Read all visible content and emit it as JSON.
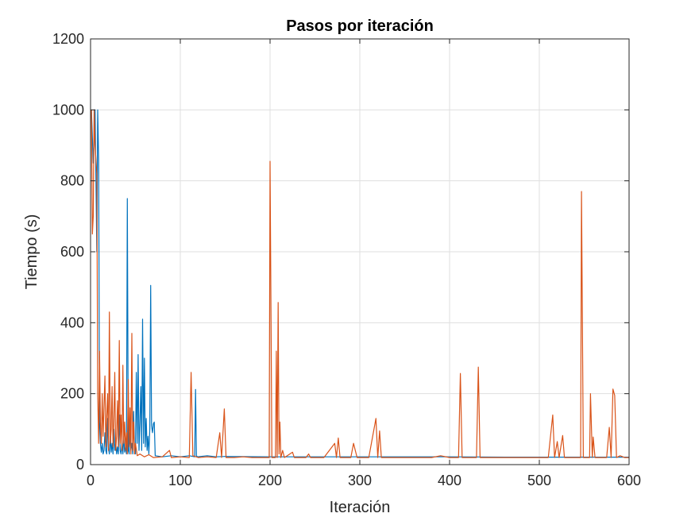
{
  "chart_data": {
    "type": "line",
    "title": "Pasos por iteración",
    "xlabel": "Iteración",
    "ylabel": "Tiempo (s)",
    "xlim": [
      0,
      600
    ],
    "ylim": [
      0,
      1200
    ],
    "xticks": [
      0,
      100,
      200,
      300,
      400,
      500,
      600
    ],
    "yticks": [
      0,
      200,
      400,
      600,
      800,
      1000,
      1200
    ],
    "grid": true,
    "series": [
      {
        "color": "#0072BD",
        "points": [
          [
            1,
            1000
          ],
          [
            3,
            850
          ],
          [
            5,
            1000
          ],
          [
            7,
            600
          ],
          [
            8,
            1000
          ],
          [
            9,
            860
          ],
          [
            10,
            120
          ],
          [
            11,
            60
          ],
          [
            12,
            35
          ],
          [
            13,
            60
          ],
          [
            14,
            30
          ],
          [
            15,
            40
          ],
          [
            16,
            90
          ],
          [
            17,
            40
          ],
          [
            18,
            30
          ],
          [
            19,
            130
          ],
          [
            20,
            45
          ],
          [
            21,
            30
          ],
          [
            22,
            80
          ],
          [
            23,
            35
          ],
          [
            24,
            60
          ],
          [
            25,
            30
          ],
          [
            26,
            100
          ],
          [
            27,
            40
          ],
          [
            28,
            60
          ],
          [
            29,
            30
          ],
          [
            30,
            50
          ],
          [
            31,
            30
          ],
          [
            32,
            140
          ],
          [
            33,
            40
          ],
          [
            34,
            30
          ],
          [
            35,
            60
          ],
          [
            36,
            30
          ],
          [
            37,
            80
          ],
          [
            38,
            35
          ],
          [
            39,
            50
          ],
          [
            40,
            30
          ],
          [
            41,
            750
          ],
          [
            42,
            40
          ],
          [
            43,
            30
          ],
          [
            44,
            90
          ],
          [
            45,
            40
          ],
          [
            46,
            60
          ],
          [
            47,
            30
          ],
          [
            48,
            150
          ],
          [
            49,
            40
          ],
          [
            50,
            30
          ],
          [
            51,
            260
          ],
          [
            52,
            60
          ],
          [
            53,
            310
          ],
          [
            54,
            40
          ],
          [
            55,
            120
          ],
          [
            56,
            220
          ],
          [
            57,
            40
          ],
          [
            58,
            410
          ],
          [
            59,
            60
          ],
          [
            60,
            300
          ],
          [
            61,
            50
          ],
          [
            62,
            130
          ],
          [
            63,
            40
          ],
          [
            64,
            80
          ],
          [
            65,
            30
          ],
          [
            66,
            100
          ],
          [
            67,
            505
          ],
          [
            68,
            110
          ],
          [
            69,
            90
          ],
          [
            70,
            115
          ],
          [
            71,
            120
          ],
          [
            72,
            25
          ],
          [
            80,
            22
          ],
          [
            90,
            25
          ],
          [
            100,
            22
          ],
          [
            110,
            25
          ],
          [
            116,
            22
          ],
          [
            117,
            212
          ],
          [
            118,
            25
          ],
          [
            119,
            22
          ],
          [
            130,
            25
          ],
          [
            140,
            22
          ],
          [
            150,
            23
          ],
          [
            200,
            22
          ],
          [
            250,
            22
          ],
          [
            300,
            22
          ],
          [
            350,
            22
          ],
          [
            400,
            22
          ],
          [
            465,
            21
          ],
          [
            500,
            21
          ],
          [
            550,
            21
          ],
          [
            600,
            21
          ]
        ]
      },
      {
        "color": "#D95319",
        "points": [
          [
            1,
            1000
          ],
          [
            2,
            650
          ],
          [
            3,
            700
          ],
          [
            4,
            1000
          ],
          [
            5,
            900
          ],
          [
            6,
            860
          ],
          [
            7,
            820
          ],
          [
            8,
            200
          ],
          [
            9,
            60
          ],
          [
            10,
            320
          ],
          [
            11,
            120
          ],
          [
            12,
            60
          ],
          [
            13,
            200
          ],
          [
            14,
            80
          ],
          [
            15,
            160
          ],
          [
            16,
            250
          ],
          [
            17,
            50
          ],
          [
            18,
            130
          ],
          [
            19,
            200
          ],
          [
            20,
            40
          ],
          [
            21,
            430
          ],
          [
            22,
            60
          ],
          [
            23,
            100
          ],
          [
            24,
            220
          ],
          [
            25,
            50
          ],
          [
            26,
            130
          ],
          [
            27,
            260
          ],
          [
            28,
            40
          ],
          [
            29,
            80
          ],
          [
            30,
            180
          ],
          [
            31,
            50
          ],
          [
            32,
            350
          ],
          [
            33,
            60
          ],
          [
            34,
            140
          ],
          [
            35,
            40
          ],
          [
            36,
            280
          ],
          [
            37,
            60
          ],
          [
            38,
            120
          ],
          [
            39,
            40
          ],
          [
            40,
            90
          ],
          [
            41,
            30
          ],
          [
            42,
            240
          ],
          [
            43,
            50
          ],
          [
            44,
            160
          ],
          [
            45,
            30
          ],
          [
            46,
            370
          ],
          [
            47,
            40
          ],
          [
            48,
            120
          ],
          [
            49,
            30
          ],
          [
            50,
            60
          ],
          [
            52,
            25
          ],
          [
            55,
            30
          ],
          [
            60,
            22
          ],
          [
            65,
            28
          ],
          [
            70,
            20
          ],
          [
            80,
            22
          ],
          [
            88,
            40
          ],
          [
            90,
            20
          ],
          [
            100,
            22
          ],
          [
            110,
            20
          ],
          [
            112,
            260
          ],
          [
            114,
            25
          ],
          [
            120,
            20
          ],
          [
            130,
            22
          ],
          [
            140,
            20
          ],
          [
            144,
            90
          ],
          [
            146,
            20
          ],
          [
            149,
            157
          ],
          [
            151,
            20
          ],
          [
            160,
            20
          ],
          [
            170,
            22
          ],
          [
            180,
            20
          ],
          [
            190,
            20
          ],
          [
            199,
            20
          ],
          [
            200,
            855
          ],
          [
            202,
            20
          ],
          [
            206,
            20
          ],
          [
            207,
            320
          ],
          [
            208,
            20
          ],
          [
            209,
            457
          ],
          [
            210,
            30
          ],
          [
            211,
            120
          ],
          [
            212,
            20
          ],
          [
            214,
            40
          ],
          [
            216,
            20
          ],
          [
            225,
            35
          ],
          [
            227,
            20
          ],
          [
            240,
            20
          ],
          [
            243,
            30
          ],
          [
            245,
            20
          ],
          [
            260,
            20
          ],
          [
            272,
            60
          ],
          [
            274,
            20
          ],
          [
            276,
            75
          ],
          [
            278,
            20
          ],
          [
            290,
            20
          ],
          [
            293,
            60
          ],
          [
            295,
            40
          ],
          [
            297,
            20
          ],
          [
            310,
            20
          ],
          [
            318,
            130
          ],
          [
            320,
            20
          ],
          [
            322,
            95
          ],
          [
            324,
            20
          ],
          [
            340,
            20
          ],
          [
            360,
            20
          ],
          [
            380,
            20
          ],
          [
            390,
            25
          ],
          [
            400,
            20
          ],
          [
            410,
            20
          ],
          [
            412,
            257
          ],
          [
            414,
            20
          ],
          [
            420,
            20
          ],
          [
            430,
            20
          ],
          [
            432,
            275
          ],
          [
            434,
            20
          ],
          [
            450,
            20
          ],
          [
            470,
            20
          ],
          [
            490,
            20
          ],
          [
            510,
            20
          ],
          [
            515,
            140
          ],
          [
            517,
            20
          ],
          [
            520,
            65
          ],
          [
            522,
            20
          ],
          [
            526,
            82
          ],
          [
            528,
            20
          ],
          [
            540,
            20
          ],
          [
            546,
            20
          ],
          [
            547,
            770
          ],
          [
            549,
            20
          ],
          [
            556,
            20
          ],
          [
            557,
            200
          ],
          [
            559,
            20
          ],
          [
            560,
            78
          ],
          [
            562,
            20
          ],
          [
            575,
            20
          ],
          [
            578,
            105
          ],
          [
            580,
            20
          ],
          [
            582,
            213
          ],
          [
            584,
            195
          ],
          [
            586,
            20
          ],
          [
            590,
            25
          ],
          [
            595,
            20
          ],
          [
            600,
            20
          ]
        ]
      }
    ]
  }
}
